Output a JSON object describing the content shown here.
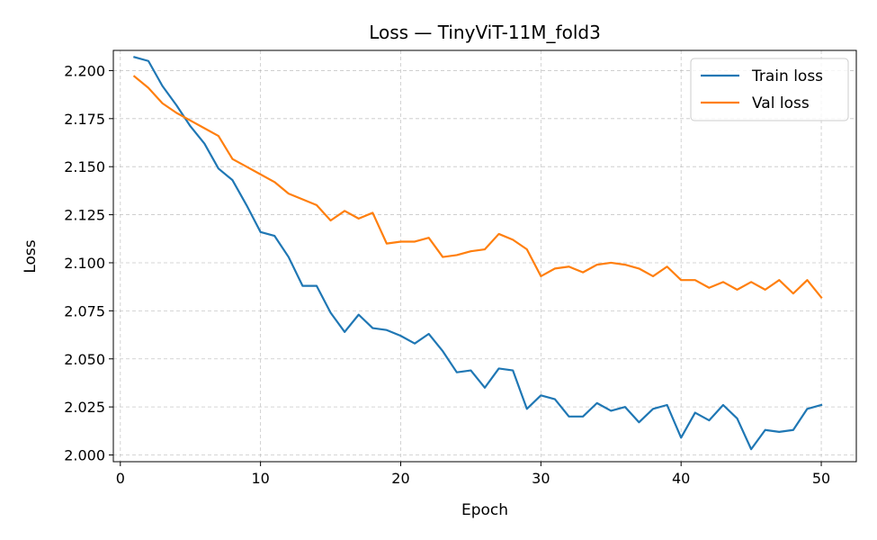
{
  "chart_data": {
    "type": "line",
    "title": "Loss — TinyViT-11M_fold3",
    "xlabel": "Epoch",
    "ylabel": "Loss",
    "xlim": [
      -0.5,
      52.5
    ],
    "ylim": [
      1.9965,
      2.2105
    ],
    "xticks": [
      0,
      10,
      20,
      30,
      40,
      50
    ],
    "yticks": [
      2.0,
      2.025,
      2.05,
      2.075,
      2.1,
      2.125,
      2.15,
      2.175,
      2.2
    ],
    "ytick_labels": [
      "2.000",
      "2.025",
      "2.050",
      "2.075",
      "2.100",
      "2.125",
      "2.150",
      "2.175",
      "2.200"
    ],
    "grid": true,
    "legend_position": "top-right",
    "x": [
      1,
      2,
      3,
      4,
      5,
      6,
      7,
      8,
      9,
      10,
      11,
      12,
      13,
      14,
      15,
      16,
      17,
      18,
      19,
      20,
      21,
      22,
      23,
      24,
      25,
      26,
      27,
      28,
      29,
      30,
      31,
      32,
      33,
      34,
      35,
      36,
      37,
      38,
      39,
      40,
      41,
      42,
      43,
      44,
      45,
      46,
      47,
      48,
      49,
      50
    ],
    "series": [
      {
        "name": "Train loss",
        "color": "#1f77b4",
        "values": [
          2.207,
          2.205,
          2.192,
          2.182,
          2.171,
          2.162,
          2.149,
          2.143,
          2.13,
          2.116,
          2.114,
          2.103,
          2.088,
          2.088,
          2.074,
          2.064,
          2.073,
          2.066,
          2.065,
          2.062,
          2.058,
          2.063,
          2.054,
          2.043,
          2.044,
          2.035,
          2.045,
          2.044,
          2.024,
          2.031,
          2.029,
          2.02,
          2.02,
          2.027,
          2.023,
          2.025,
          2.017,
          2.024,
          2.026,
          2.009,
          2.022,
          2.018,
          2.026,
          2.019,
          2.003,
          2.013,
          2.012,
          2.013,
          2.024,
          2.026
        ]
      },
      {
        "name": "Val loss",
        "color": "#ff7f0e",
        "values": [
          2.197,
          2.191,
          2.183,
          2.178,
          2.174,
          2.17,
          2.166,
          2.154,
          2.15,
          2.146,
          2.142,
          2.136,
          2.133,
          2.13,
          2.122,
          2.127,
          2.123,
          2.126,
          2.11,
          2.111,
          2.111,
          2.113,
          2.103,
          2.104,
          2.106,
          2.107,
          2.115,
          2.112,
          2.107,
          2.093,
          2.097,
          2.098,
          2.095,
          2.099,
          2.1,
          2.099,
          2.097,
          2.093,
          2.098,
          2.091,
          2.091,
          2.087,
          2.09,
          2.086,
          2.09,
          2.086,
          2.091,
          2.084,
          2.091,
          2.082
        ]
      }
    ]
  }
}
